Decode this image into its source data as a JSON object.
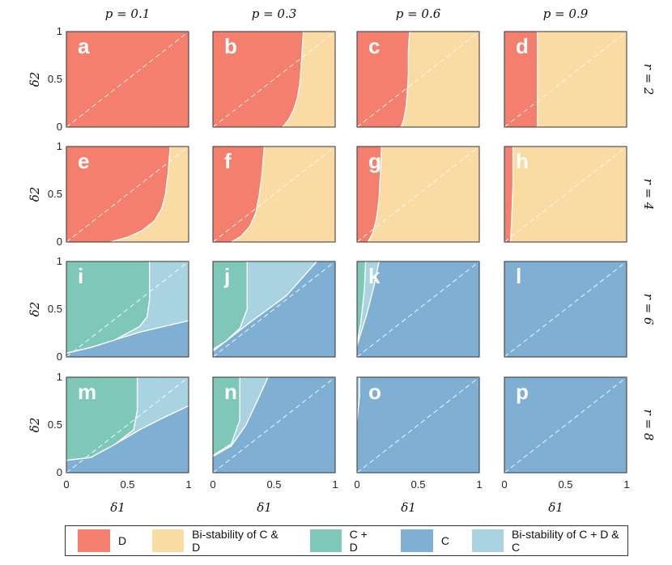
{
  "chart_data": {
    "type": "area",
    "column_titles": [
      "p = 0.1",
      "p = 0.3",
      "p = 0.6",
      "p = 0.9"
    ],
    "row_titles": [
      "r = 2",
      "r = 4",
      "r = 6",
      "r = 8"
    ],
    "xlabel": "δ1",
    "ylabel": "δ2",
    "xlim": [
      0,
      1
    ],
    "ylim": [
      0,
      1
    ],
    "x_ticks": [
      "0",
      "0.5",
      "1"
    ],
    "y_ticks": [
      "0",
      "0.5",
      "1"
    ],
    "diagonal_reference": "y = x (dashed)",
    "colors": {
      "D": "#f47f6e",
      "BiCD": "#f9dba3",
      "CD": "#7fc7b8",
      "C": "#7fafd2",
      "BiCDC": "#a9d3e0"
    },
    "panels": [
      {
        "letter": "a",
        "p": 0.1,
        "r": 2,
        "background": "D",
        "regions": []
      },
      {
        "letter": "b",
        "p": 0.3,
        "r": 2,
        "background": "D",
        "regions": [
          {
            "state": "BiCD",
            "boundary": [
              [
                0.57,
                0
              ],
              [
                0.62,
                0.08
              ],
              [
                0.66,
                0.18
              ],
              [
                0.69,
                0.3
              ],
              [
                0.71,
                0.45
              ],
              [
                0.72,
                0.6
              ],
              [
                0.73,
                0.8
              ],
              [
                0.74,
                1
              ]
            ],
            "fill": "right"
          }
        ]
      },
      {
        "letter": "c",
        "p": 0.6,
        "r": 2,
        "background": "D",
        "regions": [
          {
            "state": "BiCD",
            "boundary": [
              [
                0.36,
                0
              ],
              [
                0.38,
                0.07
              ],
              [
                0.4,
                0.2
              ],
              [
                0.41,
                0.35
              ],
              [
                0.42,
                0.55
              ],
              [
                0.42,
                0.8
              ],
              [
                0.43,
                1
              ]
            ],
            "fill": "right"
          }
        ]
      },
      {
        "letter": "d",
        "p": 0.9,
        "r": 2,
        "background": "D",
        "regions": [
          {
            "state": "BiCD",
            "boundary": [
              [
                0.27,
                0
              ],
              [
                0.27,
                0.3
              ],
              [
                0.27,
                0.7
              ],
              [
                0.27,
                1
              ]
            ],
            "fill": "right"
          }
        ]
      },
      {
        "letter": "e",
        "p": 0.1,
        "r": 4,
        "background": "D",
        "regions": [
          {
            "state": "BiCD",
            "boundary": [
              [
                0.36,
                0
              ],
              [
                0.5,
                0.05
              ],
              [
                0.62,
                0.12
              ],
              [
                0.72,
                0.22
              ],
              [
                0.78,
                0.35
              ],
              [
                0.81,
                0.5
              ],
              [
                0.83,
                0.7
              ],
              [
                0.85,
                1
              ]
            ],
            "fill": "right"
          }
        ]
      },
      {
        "letter": "f",
        "p": 0.3,
        "r": 4,
        "background": "D",
        "regions": [
          {
            "state": "BiCD",
            "boundary": [
              [
                0.15,
                0
              ],
              [
                0.23,
                0.06
              ],
              [
                0.3,
                0.16
              ],
              [
                0.35,
                0.3
              ],
              [
                0.38,
                0.5
              ],
              [
                0.4,
                0.7
              ],
              [
                0.42,
                1
              ]
            ],
            "fill": "right"
          }
        ]
      },
      {
        "letter": "g",
        "p": 0.6,
        "r": 4,
        "background": "D",
        "regions": [
          {
            "state": "BiCD",
            "boundary": [
              [
                0.09,
                0
              ],
              [
                0.13,
                0.1
              ],
              [
                0.16,
                0.25
              ],
              [
                0.18,
                0.45
              ],
              [
                0.19,
                0.7
              ],
              [
                0.2,
                1
              ]
            ],
            "fill": "right"
          }
        ]
      },
      {
        "letter": "h",
        "p": 0.9,
        "r": 4,
        "background": "D",
        "regions": [
          {
            "state": "BiCD",
            "boundary": [
              [
                0.05,
                0
              ],
              [
                0.06,
                0.25
              ],
              [
                0.07,
                0.6
              ],
              [
                0.07,
                1
              ]
            ],
            "fill": "right"
          }
        ]
      },
      {
        "letter": "i",
        "p": 0.1,
        "r": 6,
        "background": "C",
        "regions": [
          {
            "state": "BiCDC",
            "boundary": [
              [
                0,
                0.04
              ],
              [
                0.2,
                0.1
              ],
              [
                0.4,
                0.18
              ],
              [
                0.6,
                0.26
              ],
              [
                0.8,
                0.32
              ],
              [
                1,
                0.38
              ]
            ],
            "fill": "above"
          },
          {
            "state": "CD",
            "boundary": [
              [
                0.68,
                1
              ],
              [
                0.68,
                0.6
              ],
              [
                0.66,
                0.42
              ],
              [
                0.6,
                0.32
              ],
              [
                0.4,
                0.18
              ],
              [
                0.2,
                0.1
              ],
              [
                0,
                0.04
              ]
            ],
            "fill": "left"
          }
        ]
      },
      {
        "letter": "j",
        "p": 0.3,
        "r": 6,
        "background": "C",
        "regions": [
          {
            "state": "BiCDC",
            "boundary": [
              [
                0,
                0.06
              ],
              [
                0.3,
                0.36
              ],
              [
                0.6,
                0.64
              ],
              [
                0.85,
                1
              ]
            ],
            "fill": "above"
          },
          {
            "state": "CD",
            "boundary": [
              [
                0.28,
                1
              ],
              [
                0.28,
                0.5
              ],
              [
                0.22,
                0.3
              ],
              [
                0.1,
                0.16
              ],
              [
                0,
                0.08
              ]
            ],
            "fill": "left"
          }
        ]
      },
      {
        "letter": "k",
        "p": 0.6,
        "r": 6,
        "background": "C",
        "regions": [
          {
            "state": "BiCDC",
            "boundary": [
              [
                0,
                0.12
              ],
              [
                0.08,
                0.45
              ],
              [
                0.14,
                0.75
              ],
              [
                0.18,
                1
              ]
            ],
            "fill": "above"
          },
          {
            "state": "CD",
            "boundary": [
              [
                0.07,
                1
              ],
              [
                0.06,
                0.7
              ],
              [
                0.03,
                0.35
              ],
              [
                0,
                0.14
              ]
            ],
            "fill": "left"
          }
        ]
      },
      {
        "letter": "l",
        "p": 0.9,
        "r": 6,
        "background": "C",
        "regions": []
      },
      {
        "letter": "m",
        "p": 0.1,
        "r": 8,
        "background": "C",
        "regions": [
          {
            "state": "BiCDC",
            "boundary": [
              [
                0,
                0.13
              ],
              [
                0.2,
                0.16
              ],
              [
                0.4,
                0.3
              ],
              [
                0.6,
                0.45
              ],
              [
                0.8,
                0.58
              ],
              [
                1,
                0.7
              ]
            ],
            "fill": "above"
          },
          {
            "state": "CD",
            "boundary": [
              [
                0.58,
                1
              ],
              [
                0.58,
                0.65
              ],
              [
                0.55,
                0.45
              ],
              [
                0.4,
                0.3
              ],
              [
                0.2,
                0.16
              ],
              [
                0,
                0.13
              ]
            ],
            "fill": "left"
          }
        ]
      },
      {
        "letter": "n",
        "p": 0.3,
        "r": 8,
        "background": "C",
        "regions": [
          {
            "state": "BiCDC",
            "boundary": [
              [
                0,
                0.17
              ],
              [
                0.15,
                0.28
              ],
              [
                0.27,
                0.5
              ],
              [
                0.38,
                0.8
              ],
              [
                0.45,
                1
              ]
            ],
            "fill": "above"
          },
          {
            "state": "CD",
            "boundary": [
              [
                0.22,
                1
              ],
              [
                0.22,
                0.55
              ],
              [
                0.15,
                0.3
              ],
              [
                0,
                0.18
              ]
            ],
            "fill": "left"
          }
        ]
      },
      {
        "letter": "o",
        "p": 0.6,
        "r": 8,
        "background": "C",
        "regions": [
          {
            "state": "BiCDC",
            "boundary": [
              [
                0,
                0.55
              ],
              [
                0.02,
                0.8
              ],
              [
                0.02,
                1
              ]
            ],
            "fill": "above"
          }
        ]
      },
      {
        "letter": "p",
        "p": 0.9,
        "r": 8,
        "background": "C",
        "regions": []
      }
    ],
    "legend": [
      {
        "key": "D",
        "label": "D"
      },
      {
        "key": "BiCD",
        "label": "Bi-stability of C & D"
      },
      {
        "key": "CD",
        "label": "C + D"
      },
      {
        "key": "C",
        "label": "C"
      },
      {
        "key": "BiCDC",
        "label": "Bi-stability of C + D & C"
      }
    ]
  }
}
